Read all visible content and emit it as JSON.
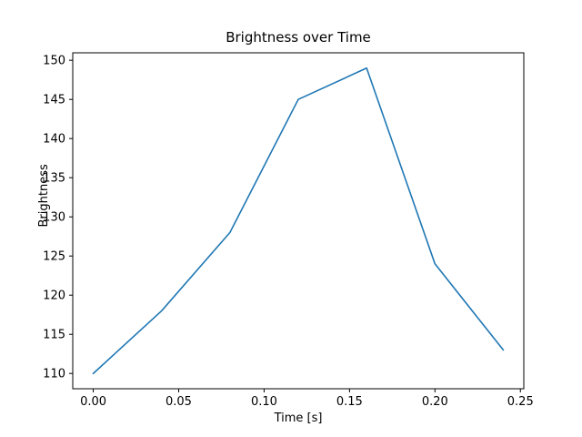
{
  "chart_data": {
    "type": "line",
    "title": "Brightness over Time",
    "xlabel": "Time [s]",
    "ylabel": "Brightness",
    "x": [
      0.0,
      0.04,
      0.08,
      0.12,
      0.16,
      0.2,
      0.24
    ],
    "y": [
      110,
      118,
      128,
      145,
      149,
      124,
      113
    ],
    "xlim": [
      -0.012,
      0.252
    ],
    "ylim": [
      108.05,
      150.95
    ],
    "xticks": [
      0.0,
      0.05,
      0.1,
      0.15,
      0.2,
      0.25
    ],
    "xtick_labels": [
      "0.00",
      "0.05",
      "0.10",
      "0.15",
      "0.20",
      "0.25"
    ],
    "yticks": [
      110,
      115,
      120,
      125,
      130,
      135,
      140,
      145,
      150
    ],
    "ytick_labels": [
      "110",
      "115",
      "120",
      "125",
      "130",
      "135",
      "140",
      "145",
      "150"
    ],
    "line_color": "#1f77b4",
    "grid": false,
    "legend_position": "none"
  }
}
